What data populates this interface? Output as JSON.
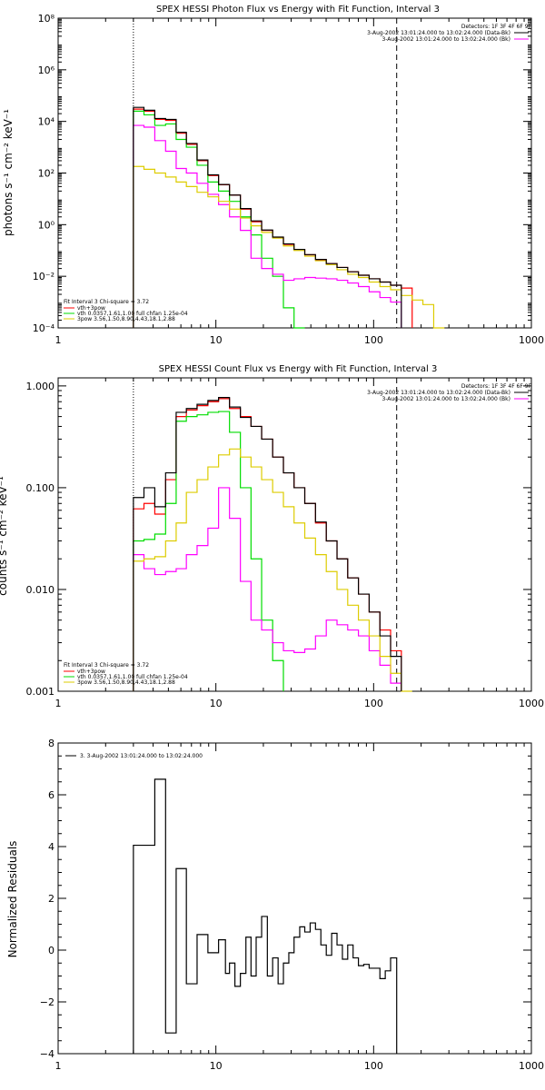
{
  "chart_data": [
    {
      "type": "line",
      "title": "SPEX HESSI Photon Flux vs Energy with Fit Function, Interval 3",
      "ylabel": "photons s⁻¹ cm⁻² keV⁻¹",
      "xlabel": "",
      "xscale": "log",
      "yscale": "log",
      "xlim": [
        1,
        1000
      ],
      "ylim": [
        0.0001,
        100000000
      ],
      "xticks": [
        "1",
        "10",
        "100",
        "1000"
      ],
      "yticks": [
        "10⁻⁴",
        "10⁻²",
        "10⁰",
        "10²",
        "10⁴",
        "10⁶"
      ],
      "ytick_values": [
        0.0001,
        0.01,
        1,
        100,
        10000,
        1000000
      ],
      "vlines": [
        {
          "x": 3,
          "style": "dotted"
        },
        {
          "x": 140,
          "style": "dashed"
        }
      ],
      "legend_topright": [
        "Detectors: 1F 3F 4F 6F 9F",
        "3-Aug-2002 13:01:24.000 to 13:02:24.000 (Data-Bk)",
        "3-Aug-2002 13:01:24.000 to 13:02:24.000 (Bk)"
      ],
      "legend_bottomleft": [
        "Fit Interval 3   Chi-square = 3.72",
        "vth+3pow",
        "vth 0.0357,1.61,1.00  full chfan 1.25e-04",
        "3pow 3.56,1.50,8.90,4.43,18.1,2.88"
      ],
      "series": [
        {
          "name": "vth+3pow",
          "color": "#ff0000",
          "x": [
            3.0,
            3.5,
            4.1,
            4.8,
            5.6,
            6.5,
            7.6,
            8.9,
            10.4,
            12.2,
            14.3,
            16.7,
            19.5,
            22.9,
            26.8,
            31.3,
            36.6,
            42.8,
            50.1,
            58.6,
            68.5,
            80.1,
            93.7,
            109.6,
            128.1,
            150.0
          ],
          "y": [
            30000,
            25000,
            12000,
            11000,
            3500,
            1300,
            300,
            80,
            35,
            14,
            4,
            1.3,
            0.6,
            0.32,
            0.17,
            0.11,
            0.068,
            0.044,
            0.031,
            0.022,
            0.015,
            0.011,
            0.008,
            0.006,
            0.0045,
            0.0035
          ]
        },
        {
          "name": "vth 0.0357,1.61,1.00",
          "color": "#00dd00",
          "x": [
            3.0,
            3.5,
            4.1,
            4.8,
            5.6,
            6.5,
            7.6,
            8.9,
            10.4,
            12.2,
            14.3,
            16.7,
            19.5,
            22.9,
            26.8,
            31.3
          ],
          "y": [
            25000,
            18000,
            7000,
            8000,
            2000,
            1000,
            200,
            45,
            20,
            8,
            2,
            0.4,
            0.05,
            0.01,
            0.0006,
            5e-05
          ]
        },
        {
          "name": "3pow 3.56,1.50,8.90,4.43,18.1,2.88",
          "color": "#ff00ff",
          "x": [
            3.0,
            3.5,
            4.1,
            4.8,
            5.6,
            6.5,
            7.6,
            8.9,
            10.4,
            12.2,
            14.3,
            16.7,
            19.5,
            22.9,
            26.8,
            31.3,
            36.6,
            42.8,
            50.1,
            58.6,
            68.5,
            80.1,
            93.7,
            109.6,
            128.1
          ],
          "y": [
            7000,
            6000,
            1800,
            700,
            150,
            100,
            40,
            15,
            6,
            2,
            0.6,
            0.05,
            0.02,
            0.012,
            0.007,
            0.008,
            0.009,
            0.0085,
            0.008,
            0.007,
            0.0055,
            0.004,
            0.0025,
            0.0015,
            0.001
          ]
        },
        {
          "name": "Data-Bk",
          "color": "#ddcc00",
          "x": [
            3.0,
            3.5,
            4.1,
            4.8,
            5.6,
            6.5,
            7.6,
            8.9,
            10.4,
            12.2,
            14.3,
            16.7,
            19.5,
            22.9,
            26.8,
            31.3,
            36.6,
            42.8,
            50.1,
            58.6,
            68.5,
            80.1,
            93.7,
            109.6,
            128.1,
            150.0,
            175.5,
            205.3,
            240.3
          ],
          "y": [
            180,
            140,
            100,
            70,
            45,
            30,
            18,
            12,
            8,
            4,
            1.8,
            0.9,
            0.5,
            0.3,
            0.15,
            0.1,
            0.06,
            0.04,
            0.028,
            0.018,
            0.012,
            0.009,
            0.006,
            0.004,
            0.003,
            0.0018,
            0.0012,
            0.0008,
            0.0001
          ]
        },
        {
          "name": "data",
          "color": "#000000",
          "x": [
            3.0,
            3.5,
            4.1,
            4.8,
            5.6,
            6.5,
            7.6,
            8.9,
            10.4,
            12.2,
            14.3,
            16.7,
            19.5,
            22.9,
            26.8,
            31.3,
            36.6,
            42.8,
            50.1,
            58.6,
            68.5,
            80.1,
            93.7,
            109.6,
            128.1
          ],
          "y": [
            35000,
            27000,
            13000,
            12000,
            3800,
            1400,
            320,
            85,
            36,
            14,
            4.2,
            1.4,
            0.62,
            0.33,
            0.18,
            0.11,
            0.069,
            0.045,
            0.031,
            0.022,
            0.015,
            0.011,
            0.008,
            0.006,
            0.0045
          ]
        }
      ]
    },
    {
      "type": "line",
      "title": "SPEX HESSI Count Flux vs Energy with Fit Function, Interval 3",
      "ylabel": "counts s⁻¹ cm⁻² keV⁻¹",
      "xlabel": "",
      "xscale": "log",
      "yscale": "log",
      "xlim": [
        1,
        1000
      ],
      "ylim": [
        0.001,
        1.2
      ],
      "xticks": [
        "1",
        "10",
        "100",
        "1000"
      ],
      "yticks": [
        "0.001",
        "0.010",
        "0.100",
        "1.000"
      ],
      "ytick_values": [
        0.001,
        0.01,
        0.1,
        1
      ],
      "vlines": [
        {
          "x": 3,
          "style": "dotted"
        },
        {
          "x": 140,
          "style": "dashed"
        }
      ],
      "legend_topright": [
        "Detectors: 1F 3F 4F 6F 9F",
        "3-Aug-2002 13:01:24.000 to 13:02:24.000 (Data-Bk)",
        "3-Aug-2002 13:01:24.000 to 13:02:24.000 (Bk)"
      ],
      "legend_bottomleft": [
        "Fit Interval 3   Chi-square = 3.72",
        "vth+3pow",
        "vth 0.0357,1.61,1.00  full chfan 1.25e-04",
        "3pow 3.56,1.50,8.90,4.43,18.1,2.88"
      ],
      "series": [
        {
          "name": "vth+3pow",
          "color": "#ff0000",
          "x": [
            3.0,
            3.5,
            4.1,
            4.8,
            5.6,
            6.5,
            7.6,
            8.9,
            10.4,
            12.2,
            14.3,
            16.7,
            19.5,
            22.9,
            26.8,
            31.3,
            36.6,
            42.8,
            50.1,
            58.6,
            68.5,
            80.1,
            93.7,
            109.6,
            128.1
          ],
          "y": [
            0.062,
            0.07,
            0.055,
            0.12,
            0.5,
            0.58,
            0.64,
            0.7,
            0.75,
            0.6,
            0.5,
            0.4,
            0.3,
            0.2,
            0.14,
            0.1,
            0.07,
            0.045,
            0.03,
            0.02,
            0.013,
            0.009,
            0.006,
            0.004,
            0.0025
          ]
        },
        {
          "name": "vth 0.0357,1.61,1.00",
          "color": "#00dd00",
          "x": [
            3.0,
            3.5,
            4.1,
            4.8,
            5.6,
            6.5,
            7.6,
            8.9,
            10.4,
            12.2,
            14.3,
            16.7,
            19.5,
            22.9
          ],
          "y": [
            0.03,
            0.031,
            0.035,
            0.07,
            0.45,
            0.5,
            0.52,
            0.55,
            0.56,
            0.35,
            0.1,
            0.02,
            0.005,
            0.002
          ]
        },
        {
          "name": "3pow 3.56,1.50,8.90,4.43,18.1,2.88",
          "color": "#ff00ff",
          "x": [
            3.0,
            3.5,
            4.1,
            4.8,
            5.6,
            6.5,
            7.6,
            8.9,
            10.4,
            12.2,
            14.3,
            16.7,
            19.5,
            22.9,
            26.8,
            31.3,
            36.6,
            42.8,
            50.1,
            58.6,
            68.5,
            80.1,
            93.7,
            109.6,
            128.1
          ],
          "y": [
            0.022,
            0.016,
            0.014,
            0.015,
            0.016,
            0.022,
            0.027,
            0.04,
            0.1,
            0.05,
            0.012,
            0.005,
            0.004,
            0.003,
            0.0025,
            0.0024,
            0.0026,
            0.0035,
            0.005,
            0.0045,
            0.004,
            0.0035,
            0.0025,
            0.0018,
            0.0012
          ]
        },
        {
          "name": "Data-Bk",
          "color": "#ddcc00",
          "x": [
            3.0,
            3.5,
            4.1,
            4.8,
            5.6,
            6.5,
            7.6,
            8.9,
            10.4,
            12.2,
            14.3,
            16.7,
            19.5,
            22.9,
            26.8,
            31.3,
            36.6,
            42.8,
            50.1,
            58.6,
            68.5,
            80.1,
            93.7,
            109.6,
            128.1,
            150.0
          ],
          "y": [
            0.019,
            0.02,
            0.021,
            0.03,
            0.045,
            0.09,
            0.12,
            0.16,
            0.21,
            0.24,
            0.2,
            0.16,
            0.12,
            0.09,
            0.065,
            0.045,
            0.032,
            0.022,
            0.015,
            0.01,
            0.007,
            0.005,
            0.0035,
            0.0022,
            0.0015,
            0.001
          ]
        },
        {
          "name": "data",
          "color": "#000000",
          "x": [
            3.0,
            3.5,
            4.1,
            4.8,
            5.6,
            6.5,
            7.6,
            8.9,
            10.4,
            12.2,
            14.3,
            16.7,
            19.5,
            22.9,
            26.8,
            31.3,
            36.6,
            42.8,
            50.1,
            58.6,
            68.5,
            80.1,
            93.7,
            109.6,
            128.1
          ],
          "y": [
            0.08,
            0.1,
            0.065,
            0.14,
            0.55,
            0.6,
            0.66,
            0.72,
            0.77,
            0.62,
            0.49,
            0.4,
            0.3,
            0.2,
            0.14,
            0.1,
            0.07,
            0.046,
            0.03,
            0.02,
            0.013,
            0.009,
            0.006,
            0.0035,
            0.0022
          ]
        }
      ]
    },
    {
      "type": "line",
      "title": "",
      "ylabel": "Normalized Residuals",
      "xlabel": "",
      "xscale": "log",
      "yscale": "linear",
      "xlim": [
        1,
        1000
      ],
      "ylim": [
        -4,
        8
      ],
      "xticks": [
        "1",
        "10",
        "100",
        "1000"
      ],
      "yticks": [
        "−4",
        "−2",
        "0",
        "2",
        "4",
        "6",
        "8"
      ],
      "ytick_values": [
        -4,
        -2,
        0,
        2,
        4,
        6,
        8
      ],
      "legend": [
        "3.  3-Aug-2002 13:01:24.000 to 13:02:24.000"
      ],
      "series": [
        {
          "name": "3.  3-Aug-2002 13:01:24.000 to 13:02:24.000",
          "color": "#000000",
          "edges": [
            3.0,
            4.1,
            4.8,
            5.6,
            6.5,
            7.6,
            8.9,
            10.4,
            11.5,
            12.2,
            13.2,
            14.3,
            15.5,
            16.7,
            18.0,
            19.5,
            21.2,
            22.9,
            24.8,
            26.8,
            29.0,
            31.3,
            34.0,
            36.6,
            39.6,
            42.8,
            46.3,
            50.1,
            54.2,
            58.6,
            63.4,
            68.5,
            74.1,
            80.1,
            86.6,
            93.7,
            101.3,
            109.6,
            118.5,
            128.1,
            140.0
          ],
          "values": [
            4.05,
            6.6,
            -3.2,
            3.15,
            -1.3,
            0.6,
            -0.1,
            0.4,
            -0.9,
            -0.5,
            -1.4,
            -0.9,
            0.5,
            -1.0,
            0.5,
            1.3,
            -1.0,
            -0.3,
            -1.3,
            -0.5,
            -0.1,
            0.5,
            0.9,
            0.7,
            1.05,
            0.8,
            0.2,
            -0.2,
            0.65,
            0.2,
            -0.35,
            0.2,
            -0.3,
            -0.6,
            -0.55,
            -0.7,
            -0.7,
            -1.1,
            -0.8,
            -0.3
          ]
        }
      ]
    }
  ]
}
